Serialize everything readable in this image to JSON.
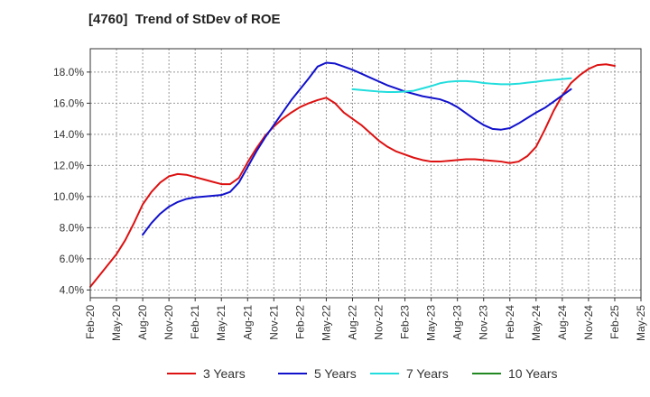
{
  "chart_data": {
    "type": "line",
    "title": "[4760]  Trend of StDev of ROE",
    "xlabel": "",
    "ylabel": "",
    "x_ticks": [
      "Feb-20",
      "May-20",
      "Aug-20",
      "Nov-20",
      "Feb-21",
      "May-21",
      "Aug-21",
      "Nov-21",
      "Feb-22",
      "May-22",
      "Aug-22",
      "Nov-22",
      "Feb-23",
      "May-23",
      "Aug-23",
      "Nov-23",
      "Feb-24",
      "May-24",
      "Aug-24",
      "Nov-24",
      "Feb-25",
      "May-25"
    ],
    "y_ticks": [
      "4.0%",
      "6.0%",
      "8.0%",
      "10.0%",
      "12.0%",
      "14.0%",
      "16.0%",
      "18.0%"
    ],
    "ylim": [
      3.5,
      19.5
    ],
    "grid": true,
    "legend_position": "bottom",
    "series": [
      {
        "name": "3 Years",
        "color": "#dd1111",
        "points": [
          [
            "Feb-20",
            4.2
          ],
          [
            "Mar-20",
            4.9
          ],
          [
            "Apr-20",
            5.6
          ],
          [
            "May-20",
            6.3
          ],
          [
            "Jun-20",
            7.2
          ],
          [
            "Jul-20",
            8.3
          ],
          [
            "Aug-20",
            9.5
          ],
          [
            "Sep-20",
            10.3
          ],
          [
            "Oct-20",
            10.9
          ],
          [
            "Nov-20",
            11.3
          ],
          [
            "Dec-20",
            11.45
          ],
          [
            "Jan-21",
            11.4
          ],
          [
            "Feb-21",
            11.25
          ],
          [
            "Mar-21",
            11.1
          ],
          [
            "Apr-21",
            10.95
          ],
          [
            "May-21",
            10.8
          ],
          [
            "Jun-21",
            10.8
          ],
          [
            "Jul-21",
            11.2
          ],
          [
            "Aug-21",
            12.2
          ],
          [
            "Sep-21",
            13.1
          ],
          [
            "Oct-21",
            13.9
          ],
          [
            "Nov-21",
            14.5
          ],
          [
            "Dec-21",
            15.0
          ],
          [
            "Jan-22",
            15.4
          ],
          [
            "Feb-22",
            15.75
          ],
          [
            "Mar-22",
            16.0
          ],
          [
            "Apr-22",
            16.2
          ],
          [
            "May-22",
            16.35
          ],
          [
            "Jun-22",
            16.0
          ],
          [
            "Jul-22",
            15.4
          ],
          [
            "Aug-22",
            15.0
          ],
          [
            "Sep-22",
            14.6
          ],
          [
            "Oct-22",
            14.1
          ],
          [
            "Nov-22",
            13.6
          ],
          [
            "Dec-22",
            13.2
          ],
          [
            "Jan-23",
            12.9
          ],
          [
            "Feb-23",
            12.7
          ],
          [
            "Mar-23",
            12.5
          ],
          [
            "Apr-23",
            12.35
          ],
          [
            "May-23",
            12.25
          ],
          [
            "Jun-23",
            12.25
          ],
          [
            "Jul-23",
            12.3
          ],
          [
            "Aug-23",
            12.35
          ],
          [
            "Sep-23",
            12.4
          ],
          [
            "Oct-23",
            12.4
          ],
          [
            "Nov-23",
            12.35
          ],
          [
            "Dec-23",
            12.3
          ],
          [
            "Jan-24",
            12.25
          ],
          [
            "Feb-24",
            12.15
          ],
          [
            "Mar-24",
            12.25
          ],
          [
            "Apr-24",
            12.6
          ],
          [
            "May-24",
            13.2
          ],
          [
            "Jun-24",
            14.3
          ],
          [
            "Jul-24",
            15.5
          ],
          [
            "Aug-24",
            16.5
          ],
          [
            "Sep-24",
            17.3
          ],
          [
            "Oct-24",
            17.8
          ],
          [
            "Nov-24",
            18.2
          ],
          [
            "Dec-24",
            18.45
          ],
          [
            "Jan-25",
            18.5
          ],
          [
            "Feb-25",
            18.4
          ]
        ]
      },
      {
        "name": "5 Years",
        "color": "#1111cc",
        "points": [
          [
            "Aug-20",
            7.55
          ],
          [
            "Sep-20",
            8.3
          ],
          [
            "Oct-20",
            8.9
          ],
          [
            "Nov-20",
            9.35
          ],
          [
            "Dec-20",
            9.65
          ],
          [
            "Jan-21",
            9.85
          ],
          [
            "Feb-21",
            9.95
          ],
          [
            "Mar-21",
            10.0
          ],
          [
            "Apr-21",
            10.05
          ],
          [
            "May-21",
            10.1
          ],
          [
            "Jun-21",
            10.3
          ],
          [
            "Jul-21",
            10.9
          ],
          [
            "Aug-21",
            11.9
          ],
          [
            "Sep-21",
            12.9
          ],
          [
            "Oct-21",
            13.8
          ],
          [
            "Nov-21",
            14.6
          ],
          [
            "Dec-21",
            15.4
          ],
          [
            "Jan-22",
            16.2
          ],
          [
            "Feb-22",
            16.9
          ],
          [
            "Mar-22",
            17.6
          ],
          [
            "Apr-22",
            18.35
          ],
          [
            "May-22",
            18.6
          ],
          [
            "Jun-22",
            18.55
          ],
          [
            "Jul-22",
            18.35
          ],
          [
            "Aug-22",
            18.15
          ],
          [
            "Sep-22",
            17.9
          ],
          [
            "Oct-22",
            17.65
          ],
          [
            "Nov-22",
            17.4
          ],
          [
            "Dec-22",
            17.15
          ],
          [
            "Jan-23",
            16.95
          ],
          [
            "Feb-23",
            16.75
          ],
          [
            "Mar-23",
            16.6
          ],
          [
            "Apr-23",
            16.45
          ],
          [
            "May-23",
            16.35
          ],
          [
            "Jun-23",
            16.25
          ],
          [
            "Jul-23",
            16.05
          ],
          [
            "Aug-23",
            15.75
          ],
          [
            "Sep-23",
            15.35
          ],
          [
            "Oct-23",
            14.95
          ],
          [
            "Nov-23",
            14.6
          ],
          [
            "Dec-23",
            14.35
          ],
          [
            "Jan-24",
            14.3
          ],
          [
            "Feb-24",
            14.4
          ],
          [
            "Mar-24",
            14.7
          ],
          [
            "Apr-24",
            15.05
          ],
          [
            "May-24",
            15.4
          ],
          [
            "Jun-24",
            15.7
          ],
          [
            "Jul-24",
            16.1
          ],
          [
            "Aug-24",
            16.5
          ],
          [
            "Sep-24",
            16.9
          ]
        ]
      },
      {
        "name": "7 Years",
        "color": "#22dddd",
        "points": [
          [
            "Aug-22",
            16.9
          ],
          [
            "Sep-22",
            16.85
          ],
          [
            "Oct-22",
            16.8
          ],
          [
            "Nov-22",
            16.75
          ],
          [
            "Dec-22",
            16.72
          ],
          [
            "Jan-23",
            16.72
          ],
          [
            "Feb-23",
            16.75
          ],
          [
            "Mar-23",
            16.8
          ],
          [
            "Apr-23",
            16.95
          ],
          [
            "May-23",
            17.1
          ],
          [
            "Jun-23",
            17.28
          ],
          [
            "Jul-23",
            17.38
          ],
          [
            "Aug-23",
            17.42
          ],
          [
            "Sep-23",
            17.42
          ],
          [
            "Oct-23",
            17.38
          ],
          [
            "Nov-23",
            17.3
          ],
          [
            "Dec-23",
            17.25
          ],
          [
            "Jan-24",
            17.22
          ],
          [
            "Feb-24",
            17.22
          ],
          [
            "Mar-24",
            17.25
          ],
          [
            "Apr-24",
            17.32
          ],
          [
            "May-24",
            17.38
          ],
          [
            "Jun-24",
            17.45
          ],
          [
            "Jul-24",
            17.5
          ],
          [
            "Aug-24",
            17.55
          ],
          [
            "Sep-24",
            17.6
          ]
        ]
      },
      {
        "name": "10 Years",
        "color": "#228822",
        "points": []
      }
    ]
  }
}
